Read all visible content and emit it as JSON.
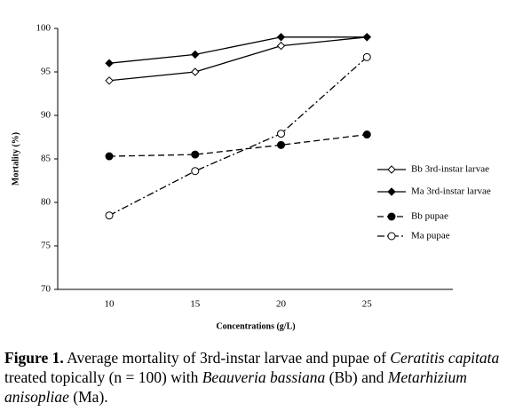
{
  "chart_data": {
    "type": "line",
    "x_label": "Concentrations (g/L)",
    "y_label": "Mortality (%)",
    "x": [
      10,
      15,
      20,
      25
    ],
    "xlim": [
      7,
      30
    ],
    "xticks": [
      10,
      15,
      20,
      25
    ],
    "ylim": [
      70,
      100
    ],
    "yticks": [
      70,
      75,
      80,
      85,
      90,
      95,
      100
    ],
    "legend": "right",
    "series": [
      {
        "name": "Bb 3rd-instar larvae",
        "color": "#000000",
        "marker": "open-diamond",
        "dash": "solid",
        "values": [
          94,
          95,
          98,
          99
        ]
      },
      {
        "name": "Ma 3rd-instar larvae",
        "color": "#000000",
        "marker": "filled-diamond",
        "dash": "solid",
        "values": [
          96,
          97,
          99,
          99
        ]
      },
      {
        "name": "Bb pupae",
        "color": "#000000",
        "marker": "filled-circle",
        "dash": "dashed",
        "values": [
          85.3,
          85.5,
          86.6,
          87.8
        ]
      },
      {
        "name": "Ma pupae",
        "color": "#000000",
        "marker": "open-circle",
        "dash": "dash-dot",
        "values": [
          78.5,
          83.6,
          87.9,
          96.7
        ]
      }
    ]
  },
  "caption": {
    "label": "Figure 1.",
    "text1": " Average mortality of 3rd-instar larvae and pupae of ",
    "species1": "Ceratitis capitata",
    "text2": " treated topically (n = 100) with ",
    "species2": "Beauveria bassiana",
    "text3": " (Bb) and ",
    "species3": "Metarhizium anisopliae",
    "text4": " (Ma)."
  }
}
